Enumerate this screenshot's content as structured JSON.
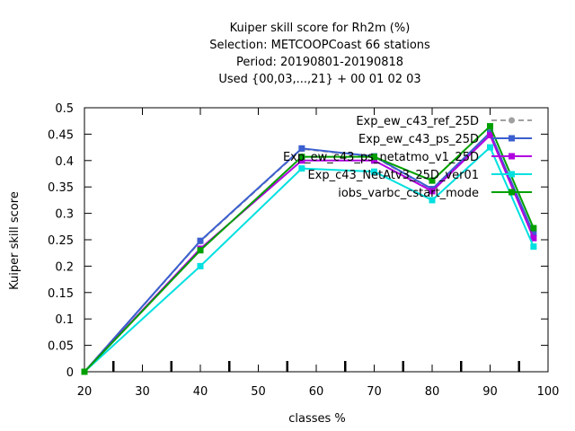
{
  "chart_data": {
    "type": "line",
    "title_lines": [
      "Kuiper skill score  for Rh2m (%)",
      "Selection: METCOOPCoast     66 stations",
      "Period: 20190801-20190818",
      "Used {00,03,...,21} + 00 01 02 03"
    ],
    "xlabel": "classes %",
    "ylabel": "Kuiper skill score",
    "xlim": [
      20,
      100
    ],
    "ylim": [
      0,
      0.5
    ],
    "xticks": [
      20,
      30,
      40,
      50,
      60,
      70,
      80,
      90,
      100
    ],
    "yticks": [
      0,
      0.05,
      0.1,
      0.15,
      0.2,
      0.25,
      0.3,
      0.35,
      0.4,
      0.45,
      0.5
    ],
    "inner_ticks_x": [
      25,
      35,
      45,
      55,
      65,
      75,
      85,
      95
    ],
    "legend_position": "top-right",
    "series": [
      {
        "name": "Exp_ew_c43_ref_25D",
        "color": "#a0a0a0",
        "dashed": true,
        "marker": "circle",
        "x": [
          20,
          40,
          57.5,
          70,
          80,
          90,
          97.5
        ],
        "y": [
          0,
          0.247,
          0.422,
          0.407,
          0.345,
          0.452,
          0.26
        ]
      },
      {
        "name": "Exp_ew_c43_ps_25D",
        "color": "#3b5fcf",
        "dashed": false,
        "marker": "square",
        "x": [
          20,
          40,
          57.5,
          70,
          80,
          90,
          97.5
        ],
        "y": [
          0,
          0.248,
          0.423,
          0.408,
          0.346,
          0.453,
          0.262
        ]
      },
      {
        "name": "Exp_ew_c43_ps_netatmo_v1_25D",
        "color": "#b000e0",
        "dashed": false,
        "marker": "square",
        "x": [
          20,
          40,
          57.5,
          70,
          80,
          90,
          97.5
        ],
        "y": [
          0,
          0.233,
          0.4,
          0.4,
          0.342,
          0.448,
          0.253
        ]
      },
      {
        "name": "Exp_c43_NetAtv3_25D_ver01",
        "color": "#00e0e0",
        "dashed": false,
        "marker": "square",
        "x": [
          20,
          40,
          57.5,
          70,
          80,
          90,
          97.5
        ],
        "y": [
          0,
          0.2,
          0.385,
          0.379,
          0.325,
          0.425,
          0.237
        ]
      },
      {
        "name": "iobs_varbc_cstart_mode",
        "color": "#00a000",
        "dashed": false,
        "marker": "square",
        "x": [
          20,
          40,
          57.5,
          70,
          80,
          90,
          97.5
        ],
        "y": [
          0,
          0.23,
          0.407,
          0.407,
          0.362,
          0.465,
          0.272
        ]
      }
    ]
  }
}
